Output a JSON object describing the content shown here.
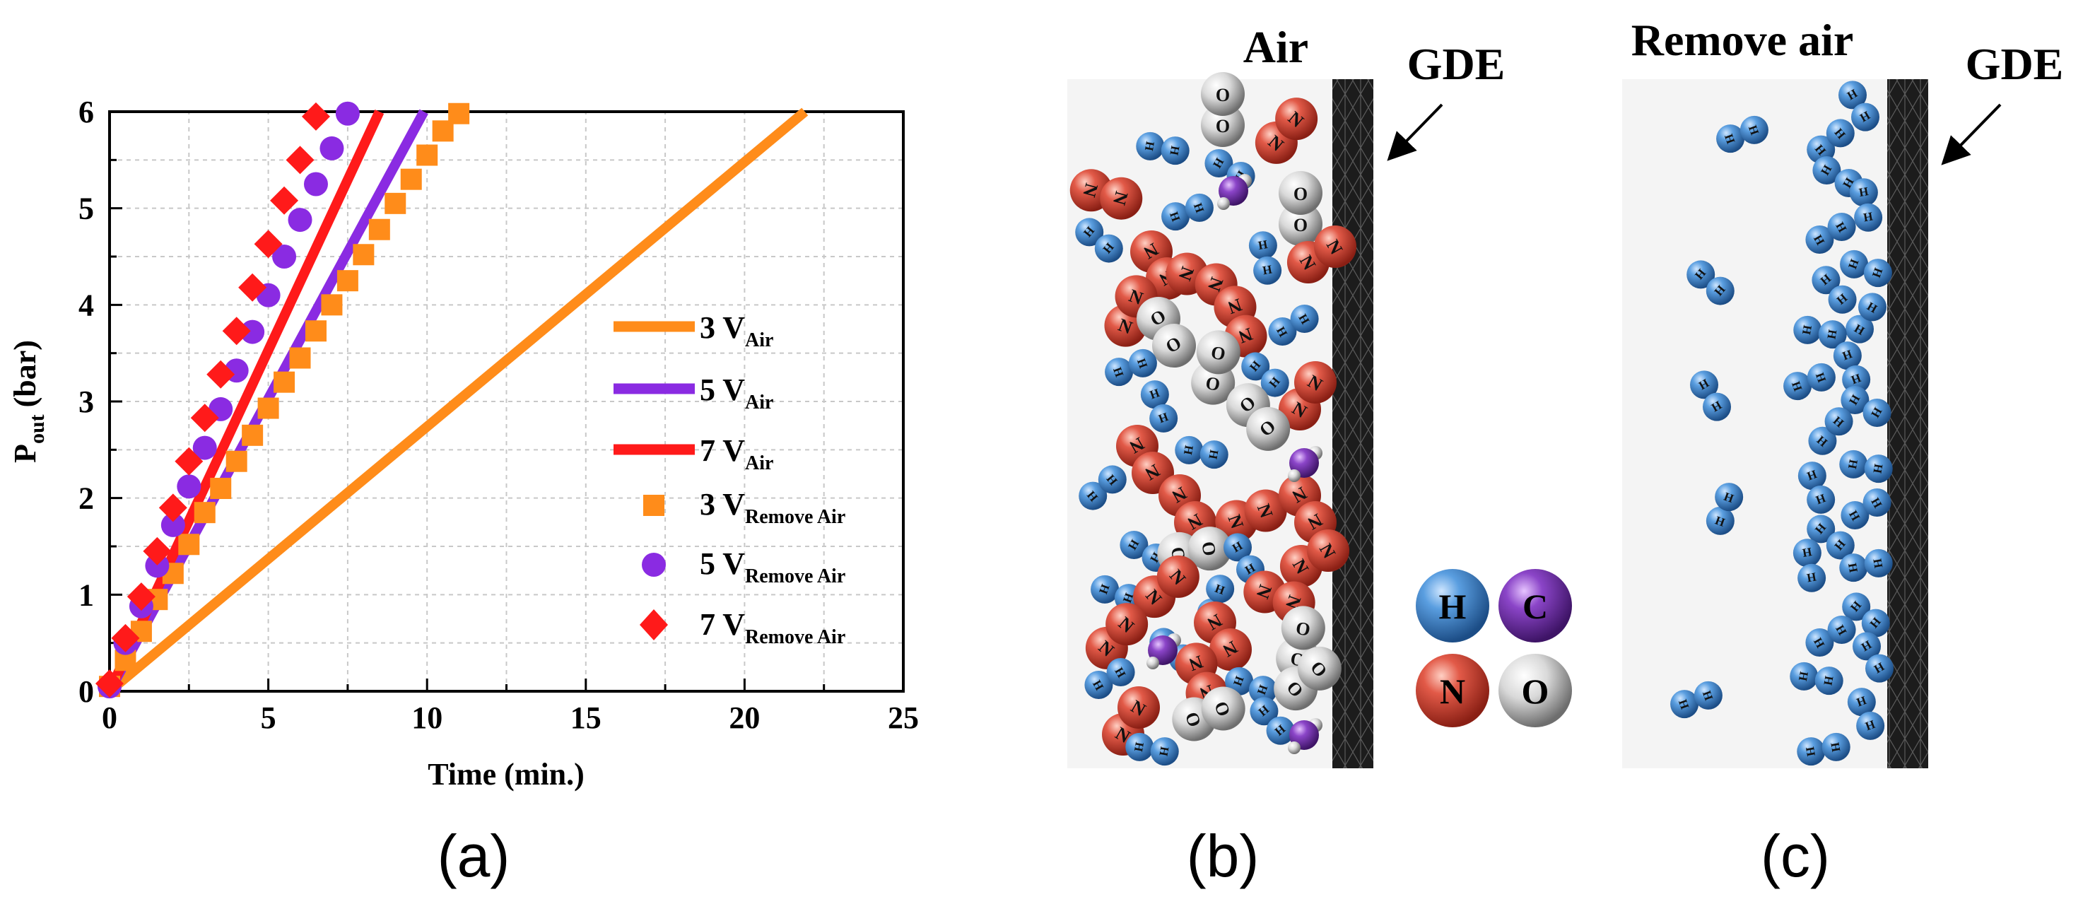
{
  "chart_data": {
    "type": "line",
    "xlabel": "Time (min.)",
    "ylabel": "P",
    "ylabel_sub": "out",
    "ylabel_unit": "(bar)",
    "xlim": [
      0,
      25
    ],
    "ylim": [
      0,
      6
    ],
    "x_ticks": [
      "0",
      "5",
      "10",
      "15",
      "20",
      "25"
    ],
    "y_ticks": [
      "0",
      "1",
      "2",
      "3",
      "4",
      "5",
      "6"
    ],
    "grid": true,
    "legend_position": "center-right",
    "series": [
      {
        "name": "3 V",
        "sub": "Air",
        "style": "line",
        "color": "#ff8c1a",
        "x": [
          0,
          21.9
        ],
        "y": [
          0,
          6
        ]
      },
      {
        "name": "5 V",
        "sub": "Air",
        "style": "line",
        "color": "#8a2be2",
        "x": [
          0,
          9.9
        ],
        "y": [
          0,
          6
        ]
      },
      {
        "name": "7 V",
        "sub": "Air",
        "style": "line",
        "color": "#ff1a1a",
        "x": [
          0,
          8.5
        ],
        "y": [
          0,
          6
        ]
      },
      {
        "name": "3 V",
        "sub": "Remove Air",
        "style": "square",
        "color": "#ff8c1a",
        "x": [
          0,
          0.5,
          1,
          1.5,
          2,
          2.5,
          3,
          3.5,
          4,
          4.5,
          5,
          5.5,
          6,
          6.5,
          7,
          7.5,
          8,
          8.5,
          9,
          9.5,
          10,
          10.5,
          11
        ],
        "y": [
          0.05,
          0.32,
          0.62,
          0.95,
          1.22,
          1.52,
          1.85,
          2.1,
          2.38,
          2.65,
          2.93,
          3.2,
          3.45,
          3.73,
          4.0,
          4.25,
          4.52,
          4.78,
          5.05,
          5.3,
          5.55,
          5.8,
          5.98
        ]
      },
      {
        "name": "5 V",
        "sub": "Remove Air",
        "style": "circle",
        "color": "#8a2be2",
        "x": [
          0,
          0.5,
          1,
          1.5,
          2,
          2.5,
          3,
          3.5,
          4,
          4.5,
          5,
          5.5,
          6,
          6.5,
          7,
          7.5
        ],
        "y": [
          0.05,
          0.5,
          0.88,
          1.3,
          1.72,
          2.12,
          2.52,
          2.92,
          3.32,
          3.72,
          4.1,
          4.5,
          4.88,
          5.25,
          5.62,
          5.98
        ]
      },
      {
        "name": "7 V",
        "sub": "Remove Air",
        "style": "diamond",
        "color": "#ff1a1a",
        "x": [
          0,
          0.5,
          1,
          1.5,
          2,
          2.5,
          3,
          3.5,
          4,
          4.5,
          5,
          5.5,
          6,
          6.5
        ],
        "y": [
          0.08,
          0.55,
          0.98,
          1.45,
          1.9,
          2.38,
          2.83,
          3.28,
          3.73,
          4.18,
          4.63,
          5.08,
          5.5,
          5.95
        ]
      }
    ]
  },
  "panels": {
    "a_label": "(a)",
    "b_label": "(b)",
    "c_label": "(c)",
    "b_title": "Air",
    "c_title": "Remove air",
    "gde_label": "GDE"
  },
  "atoms": {
    "h": {
      "letter": "H",
      "color": "#4a86c8"
    },
    "c": {
      "letter": "C",
      "color": "#7a3ab0"
    },
    "n": {
      "letter": "N",
      "color": "#d84a3a"
    },
    "o": {
      "letter": "O",
      "color": "#d8d8d8"
    }
  },
  "colors": {
    "bond": "#9a9a9a",
    "electrode": "#2a2a2a",
    "box_bg": "#f4f4f4",
    "grid": "#c8c8c8"
  }
}
